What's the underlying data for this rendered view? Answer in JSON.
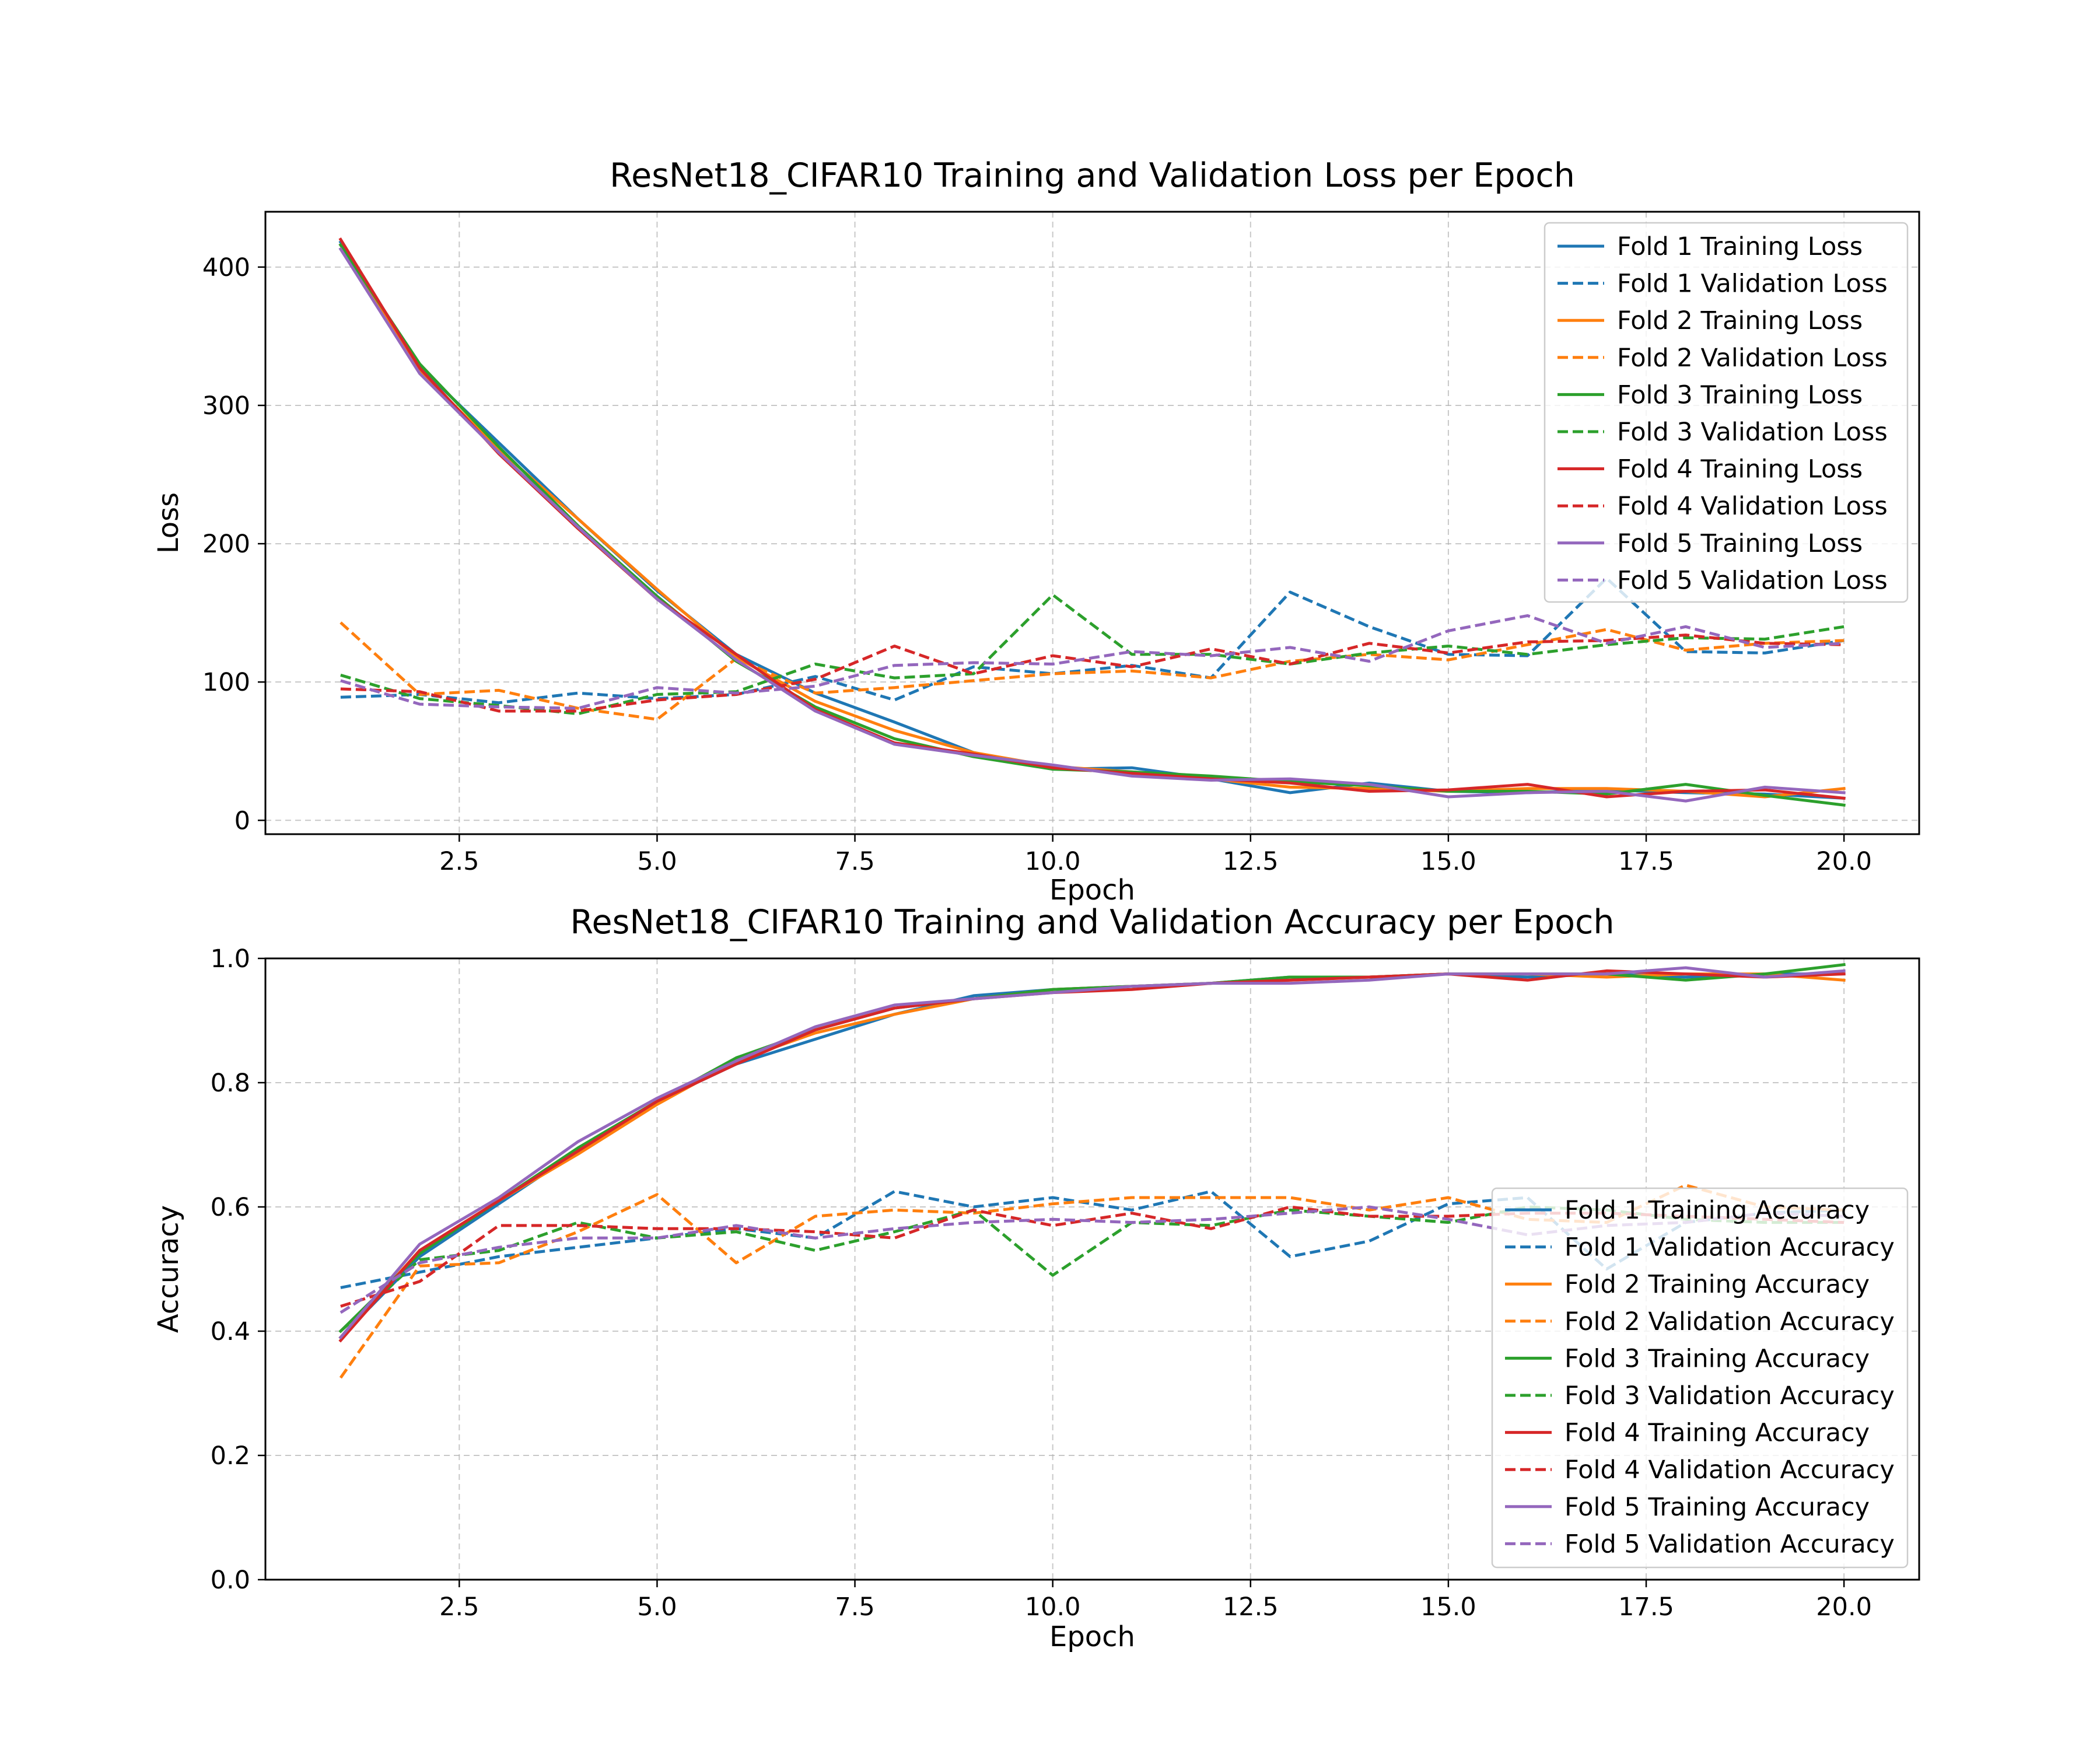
{
  "chart_data": [
    {
      "type": "line",
      "title": "ResNet18_CIFAR10 Training and Validation Loss per Epoch",
      "xlabel": "Epoch",
      "ylabel": "Loss",
      "xlim": [
        0.05,
        20.95
      ],
      "ylim": [
        -10,
        440
      ],
      "xticks": [
        2.5,
        5.0,
        7.5,
        10.0,
        12.5,
        15.0,
        17.5,
        20.0
      ],
      "xtick_labels": [
        "2.5",
        "5.0",
        "7.5",
        "10.0",
        "12.5",
        "15.0",
        "17.5",
        "20.0"
      ],
      "yticks": [
        0,
        100,
        200,
        300,
        400
      ],
      "ytick_labels": [
        "0",
        "100",
        "200",
        "300",
        "400"
      ],
      "grid": true,
      "legend_position": "top-right",
      "x": [
        1,
        2,
        3,
        4,
        5,
        6,
        7,
        8,
        9,
        10,
        11,
        12,
        13,
        14,
        15,
        16,
        17,
        18,
        19,
        20
      ],
      "series": [
        {
          "name": "Fold 1 Training Loss",
          "color": "#1f77b4",
          "dashed": false,
          "values": [
            418,
            328,
            273,
            218,
            166,
            120,
            92,
            71,
            49,
            37,
            38,
            30,
            20,
            27,
            21,
            20,
            22,
            20,
            19,
            16
          ]
        },
        {
          "name": "Fold 1 Validation Loss",
          "color": "#1f77b4",
          "dashed": true,
          "values": [
            89,
            91,
            85,
            92,
            88,
            91,
            104,
            87,
            111,
            106,
            112,
            103,
            165,
            140,
            120,
            119,
            175,
            122,
            121,
            130
          ]
        },
        {
          "name": "Fold 2 Training Loss",
          "color": "#ff7f0e",
          "dashed": false,
          "values": [
            416,
            325,
            268,
            218,
            167,
            118,
            86,
            65,
            49,
            39,
            35,
            30,
            24,
            23,
            21,
            23,
            23,
            21,
            17,
            23
          ]
        },
        {
          "name": "Fold 2 Validation Loss",
          "color": "#ff7f0e",
          "dashed": true,
          "values": [
            143,
            91,
            94,
            81,
            73,
            117,
            92,
            96,
            101,
            106,
            108,
            103,
            115,
            120,
            116,
            127,
            138,
            123,
            128,
            130
          ]
        },
        {
          "name": "Fold 3 Training Loss",
          "color": "#2ca02c",
          "dashed": false,
          "values": [
            416,
            330,
            270,
            213,
            162,
            115,
            82,
            59,
            46,
            37,
            35,
            32,
            28,
            25,
            21,
            21,
            19,
            26,
            18,
            11
          ]
        },
        {
          "name": "Fold 3 Validation Loss",
          "color": "#2ca02c",
          "dashed": true,
          "values": [
            105,
            88,
            83,
            77,
            91,
            93,
            113,
            103,
            106,
            163,
            120,
            120,
            113,
            121,
            126,
            120,
            127,
            132,
            131,
            140
          ]
        },
        {
          "name": "Fold 4 Training Loss",
          "color": "#d62728",
          "dashed": false,
          "values": [
            420,
            327,
            265,
            211,
            160,
            120,
            80,
            56,
            48,
            38,
            34,
            30,
            27,
            21,
            22,
            26,
            17,
            21,
            22,
            16
          ]
        },
        {
          "name": "Fold 4 Validation Loss",
          "color": "#d62728",
          "dashed": true,
          "values": [
            95,
            93,
            79,
            79,
            87,
            91,
            102,
            126,
            106,
            119,
            111,
            124,
            113,
            128,
            121,
            129,
            130,
            134,
            128,
            127
          ]
        },
        {
          "name": "Fold 5 Training Loss",
          "color": "#9467bd",
          "dashed": false,
          "values": [
            413,
            323,
            266,
            212,
            160,
            116,
            79,
            55,
            47,
            40,
            32,
            29,
            30,
            26,
            17,
            20,
            21,
            14,
            24,
            20
          ]
        },
        {
          "name": "Fold 5 Validation Loss",
          "color": "#9467bd",
          "dashed": true,
          "values": [
            101,
            84,
            82,
            81,
            96,
            92,
            97,
            112,
            114,
            113,
            122,
            119,
            125,
            115,
            137,
            148,
            128,
            140,
            125,
            128
          ]
        }
      ]
    },
    {
      "type": "line",
      "title": "ResNet18_CIFAR10 Training and Validation Accuracy per Epoch",
      "xlabel": "Epoch",
      "ylabel": "Accuracy",
      "xlim": [
        0.05,
        20.95
      ],
      "ylim": [
        0.0,
        1.0
      ],
      "xticks": [
        2.5,
        5.0,
        7.5,
        10.0,
        12.5,
        15.0,
        17.5,
        20.0
      ],
      "xtick_labels": [
        "2.5",
        "5.0",
        "7.5",
        "10.0",
        "12.5",
        "15.0",
        "17.5",
        "20.0"
      ],
      "yticks": [
        0.0,
        0.2,
        0.4,
        0.6,
        0.8,
        1.0
      ],
      "ytick_labels": [
        "0.0",
        "0.2",
        "0.4",
        "0.6",
        "0.8",
        "1.0"
      ],
      "grid": true,
      "legend_position": "right",
      "x": [
        1,
        2,
        3,
        4,
        5,
        6,
        7,
        8,
        9,
        10,
        11,
        12,
        13,
        14,
        15,
        16,
        17,
        18,
        19,
        20
      ],
      "series": [
        {
          "name": "Fold 1 Training Accuracy",
          "color": "#1f77b4",
          "dashed": false,
          "values": [
            0.39,
            0.52,
            0.605,
            0.69,
            0.77,
            0.83,
            0.87,
            0.91,
            0.94,
            0.95,
            0.955,
            0.96,
            0.97,
            0.97,
            0.975,
            0.97,
            0.975,
            0.97,
            0.975,
            0.975
          ]
        },
        {
          "name": "Fold 1 Validation Accuracy",
          "color": "#1f77b4",
          "dashed": true,
          "values": [
            0.47,
            0.495,
            0.52,
            0.535,
            0.55,
            0.565,
            0.55,
            0.625,
            0.6,
            0.615,
            0.595,
            0.625,
            0.52,
            0.545,
            0.605,
            0.615,
            0.5,
            0.575,
            0.59,
            0.595
          ]
        },
        {
          "name": "Fold 2 Training Accuracy",
          "color": "#ff7f0e",
          "dashed": false,
          "values": [
            0.39,
            0.53,
            0.61,
            0.685,
            0.765,
            0.835,
            0.88,
            0.91,
            0.935,
            0.95,
            0.955,
            0.96,
            0.965,
            0.97,
            0.975,
            0.975,
            0.97,
            0.975,
            0.975,
            0.965
          ]
        },
        {
          "name": "Fold 2 Validation Accuracy",
          "color": "#ff7f0e",
          "dashed": true,
          "values": [
            0.325,
            0.505,
            0.51,
            0.56,
            0.62,
            0.51,
            0.585,
            0.595,
            0.59,
            0.605,
            0.615,
            0.615,
            0.615,
            0.595,
            0.615,
            0.58,
            0.575,
            0.635,
            0.6,
            0.595
          ]
        },
        {
          "name": "Fold 3 Training Accuracy",
          "color": "#2ca02c",
          "dashed": false,
          "values": [
            0.4,
            0.525,
            0.61,
            0.695,
            0.77,
            0.84,
            0.885,
            0.92,
            0.935,
            0.95,
            0.955,
            0.96,
            0.97,
            0.97,
            0.975,
            0.975,
            0.975,
            0.965,
            0.975,
            0.99
          ]
        },
        {
          "name": "Fold 3 Validation Accuracy",
          "color": "#2ca02c",
          "dashed": true,
          "values": [
            0.4,
            0.515,
            0.53,
            0.575,
            0.55,
            0.56,
            0.53,
            0.56,
            0.595,
            0.49,
            0.575,
            0.57,
            0.595,
            0.585,
            0.575,
            0.6,
            0.595,
            0.58,
            0.575,
            0.575
          ]
        },
        {
          "name": "Fold 4 Training Accuracy",
          "color": "#d62728",
          "dashed": false,
          "values": [
            0.385,
            0.53,
            0.61,
            0.69,
            0.77,
            0.83,
            0.885,
            0.92,
            0.935,
            0.945,
            0.95,
            0.96,
            0.965,
            0.97,
            0.975,
            0.965,
            0.98,
            0.975,
            0.97,
            0.975
          ]
        },
        {
          "name": "Fold 4 Validation Accuracy",
          "color": "#d62728",
          "dashed": true,
          "values": [
            0.44,
            0.48,
            0.57,
            0.57,
            0.565,
            0.565,
            0.56,
            0.55,
            0.595,
            0.57,
            0.59,
            0.565,
            0.6,
            0.585,
            0.585,
            0.59,
            0.59,
            0.585,
            0.58,
            0.575
          ]
        },
        {
          "name": "Fold 5 Training Accuracy",
          "color": "#9467bd",
          "dashed": false,
          "values": [
            0.39,
            0.54,
            0.615,
            0.705,
            0.775,
            0.835,
            0.89,
            0.925,
            0.935,
            0.945,
            0.955,
            0.96,
            0.96,
            0.965,
            0.975,
            0.975,
            0.975,
            0.985,
            0.97,
            0.98
          ]
        },
        {
          "name": "Fold 5 Validation Accuracy",
          "color": "#9467bd",
          "dashed": true,
          "values": [
            0.43,
            0.51,
            0.535,
            0.55,
            0.55,
            0.57,
            0.55,
            0.565,
            0.575,
            0.58,
            0.575,
            0.58,
            0.59,
            0.6,
            0.58,
            0.555,
            0.57,
            0.575,
            0.59,
            0.585
          ]
        }
      ]
    }
  ]
}
